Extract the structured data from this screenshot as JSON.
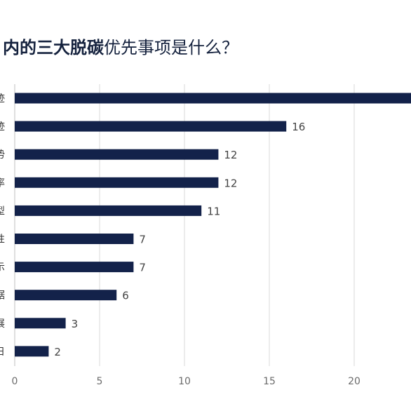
{
  "title_bold": "内的三大脱碳",
  "title_rest": "优先事项是什么？",
  "colors": {
    "bar": "#13224a",
    "grid": "#d9d9d9",
    "title": "#14213d"
  },
  "chart_data": {
    "type": "bar",
    "orientation": "horizontal",
    "categories": [
      "迹",
      "迹",
      "势",
      "率",
      "型",
      "性",
      "示",
      "据",
      "展",
      "日"
    ],
    "values": [
      25,
      16,
      12,
      12,
      11,
      7,
      7,
      6,
      3,
      2
    ],
    "data_labels": [
      "",
      "16",
      "12",
      "12",
      "11",
      "7",
      "7",
      "6",
      "3",
      "2"
    ],
    "x_ticks": [
      0,
      5,
      10,
      15,
      20
    ],
    "xlim": [
      0,
      23.5
    ],
    "grid": true,
    "legend": "none"
  }
}
